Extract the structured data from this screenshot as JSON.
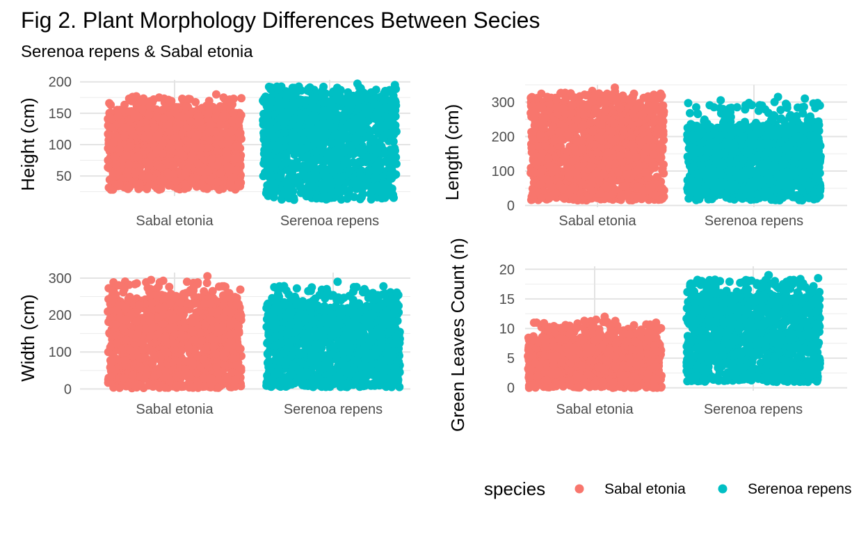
{
  "title": "Fig 2. Plant Morphology Differences Between Secies",
  "subtitle": "Serenoa repens & Sabal etonia",
  "legend": {
    "title": "species",
    "position": "bottom-right",
    "entries": [
      {
        "name": "Sabal etonia",
        "color": "#F8766D"
      },
      {
        "name": "Serenoa repens",
        "color": "#00BFC4"
      }
    ]
  },
  "chart_data": [
    {
      "type": "scatter",
      "style": "jitter",
      "ylabel": "Height (cm)",
      "categories": [
        "Sabal etonia",
        "Serenoa repens"
      ],
      "ylim": [
        18,
        203
      ],
      "yticks": [
        50,
        100,
        150,
        200
      ],
      "grid": true,
      "series": [
        {
          "name": "Sabal etonia",
          "color": "#F8766D",
          "min": 28,
          "q_low": 45,
          "q_high": 150,
          "max": 180,
          "outliers": [
            180,
            177,
            176,
            175,
            174,
            172
          ]
        },
        {
          "name": "Serenoa repens",
          "color": "#00BFC4",
          "min": 12,
          "q_low": 45,
          "q_high": 170,
          "max": 197,
          "outliers": [
            197,
            195,
            192,
            190,
            188,
            186,
            25,
            12
          ]
        }
      ]
    },
    {
      "type": "scatter",
      "style": "jitter",
      "ylabel": "Length (cm)",
      "categories": [
        "Sabal etonia",
        "Serenoa repens"
      ],
      "ylim": [
        -5,
        350
      ],
      "yticks": [
        0,
        100,
        200,
        300
      ],
      "grid": true,
      "series": [
        {
          "name": "Sabal etonia",
          "color": "#F8766D",
          "min": 15,
          "q_low": 45,
          "q_high": 280,
          "max": 342,
          "outliers": [
            342,
            325,
            320,
            318,
            315,
            312,
            15
          ]
        },
        {
          "name": "Serenoa repens",
          "color": "#00BFC4",
          "min": 15,
          "q_low": 45,
          "q_high": 225,
          "max": 315,
          "outliers": [
            315,
            310,
            305,
            300,
            295,
            290,
            285,
            15
          ]
        }
      ]
    },
    {
      "type": "scatter",
      "style": "jitter",
      "ylabel": "Width (cm)",
      "categories": [
        "Sabal etonia",
        "Serenoa repens"
      ],
      "ylim": [
        -5,
        315
      ],
      "yticks": [
        0,
        100,
        200,
        300
      ],
      "grid": true,
      "series": [
        {
          "name": "Sabal etonia",
          "color": "#F8766D",
          "min": 2,
          "q_low": 30,
          "q_high": 230,
          "max": 305,
          "outliers": [
            305,
            295,
            278,
            270,
            265,
            262,
            255
          ]
        },
        {
          "name": "Serenoa repens",
          "color": "#00BFC4",
          "min": 5,
          "q_low": 25,
          "q_high": 215,
          "max": 290,
          "outliers": [
            290,
            275,
            258,
            255,
            252,
            250,
            245
          ]
        }
      ]
    },
    {
      "type": "scatter",
      "style": "jitter",
      "ylabel": "Green Leaves Count (n)",
      "categories": [
        "Sabal etonia",
        "Serenoa repens"
      ],
      "ylim": [
        -0.5,
        20.5
      ],
      "yticks": [
        0,
        5,
        10,
        15,
        20
      ],
      "grid": true,
      "series": [
        {
          "name": "Sabal etonia",
          "color": "#F8766D",
          "min": 0,
          "q_low": 1,
          "q_high": 8,
          "max": 12,
          "outliers": [
            12,
            11.5,
            11,
            9,
            9,
            0
          ]
        },
        {
          "name": "Serenoa repens",
          "color": "#00BFC4",
          "min": 1,
          "q_low": 2,
          "q_high": 15,
          "max": 19,
          "outliers": [
            19,
            19,
            18.5,
            18,
            18,
            17,
            17,
            1
          ]
        }
      ]
    }
  ]
}
